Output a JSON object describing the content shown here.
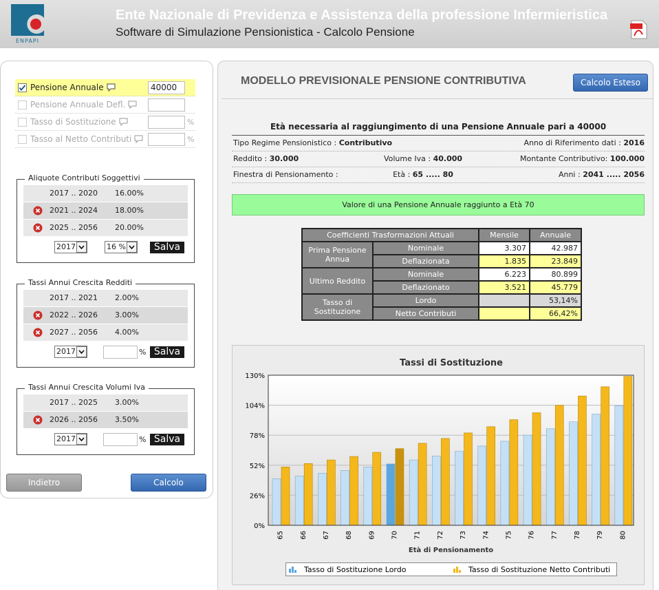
{
  "header": {
    "title": "Ente Nazionale di Previdenza e Assistenza della professione Infermieristica",
    "subtitle": "Software di Simulazione Pensionistica - Calcolo Pensione",
    "logo_text": "ENPAPI"
  },
  "left_panel": {
    "options": [
      {
        "label": "Pensione Annuale",
        "value": "40000",
        "checked": true
      },
      {
        "label": "Pensione Annuale Defl."
      },
      {
        "label": "Tasso di Sostituzione",
        "unit": "%"
      },
      {
        "label": "Tasso al Netto Contributi",
        "unit": "%"
      }
    ],
    "groups": [
      {
        "title": "Aliquote Contributi Soggettivi",
        "rows": [
          {
            "period": "2017 .. 2020",
            "rate": "16.00%"
          },
          {
            "period": "2021 .. 2024",
            "rate": "18.00%",
            "removable": true
          },
          {
            "period": "2025 .. 2056",
            "rate": "20.00%",
            "removable": true
          }
        ],
        "year_select": "2017",
        "rate_select": "16 %",
        "button": "Salva"
      },
      {
        "title": "Tassi Annui Crescita Redditi",
        "rows": [
          {
            "period": "2017 .. 2021",
            "rate": "2.00%"
          },
          {
            "period": "2022 .. 2026",
            "rate": "3.00%",
            "removable": true
          },
          {
            "period": "2027 .. 2056",
            "rate": "4.00%",
            "removable": true
          }
        ],
        "year_select": "2017",
        "unit": "%",
        "button": "Salva"
      },
      {
        "title": "Tassi Annui Crescita Volumi Iva",
        "rows": [
          {
            "period": "2017 .. 2025",
            "rate": "3.00%"
          },
          {
            "period": "2026 .. 2056",
            "rate": "3.50%",
            "removable": true
          }
        ],
        "year_select": "2017",
        "unit": "%",
        "button": "Salva"
      }
    ],
    "buttons": {
      "back": "Indietro",
      "calc": "Calcolo"
    }
  },
  "main": {
    "title": "MODELLO PREVISIONALE PENSIONE CONTRIBUTIVA",
    "button": "Calcolo Esteso",
    "heading": "Età necessaria al raggiungimento di una Pensione Annuale pari a 40000",
    "info": [
      {
        "left": {
          "label": "Tipo Regime Pensionistico : ",
          "value": "Contributivo"
        },
        "right": {
          "label": "Anno di Riferimento dati : ",
          "value": "2016"
        }
      },
      {
        "left": {
          "label": "Reddito : ",
          "value": "30.000"
        },
        "center": {
          "label": "Volume Iva : ",
          "value": "40.000"
        },
        "right": {
          "label": "Montante Contributivo: ",
          "value": "100.000"
        }
      },
      {
        "left": {
          "label": "Finestra di Pensionamento :"
        },
        "center": {
          "label": "Età : ",
          "value": "65 ..... 80"
        },
        "right": {
          "label": "Anni : ",
          "value": "2041 ..... 2056"
        }
      }
    ],
    "result": "Valore di una Pensione Annuale raggiunto a Età 70",
    "table": {
      "header": [
        "Coefficienti Trasformazioni Attuali",
        "Mensile",
        "Annuale"
      ],
      "groups": [
        {
          "label": "Prima Pensione Annua",
          "rows": [
            {
              "label": "Nominale",
              "mensile": "3.307",
              "annuale": "42.987"
            },
            {
              "label": "Deflazionata",
              "mensile": "1.835",
              "annuale": "23.849",
              "highlight": true
            }
          ]
        },
        {
          "label": "Ultimo Reddito",
          "rows": [
            {
              "label": "Nominale",
              "mensile": "6.223",
              "annuale": "80.899"
            },
            {
              "label": "Deflazionato",
              "mensile": "3.521",
              "annuale": "45.779",
              "highlight": true
            }
          ]
        },
        {
          "label": "Tasso di Sostituzione",
          "rows": [
            {
              "label": "Lordo",
              "annuale": "53,14%"
            },
            {
              "label": "Netto Contributi",
              "annuale": "66,42%",
              "highlight": true
            }
          ]
        }
      ]
    }
  },
  "chart_data": {
    "type": "bar",
    "title": "Tassi di Sostituzione",
    "x_label": "Età di Pensionamento",
    "categories": [
      "65",
      "66",
      "67",
      "68",
      "69",
      "70",
      "71",
      "72",
      "73",
      "74",
      "75",
      "76",
      "77",
      "78",
      "79",
      "80"
    ],
    "highlight": "70",
    "series": [
      {
        "name": "Tasso di Sostituzione Lordo",
        "color": "#c4e0f6",
        "highlight_color": "#5aa6de",
        "values": [
          40.3,
          42.7,
          45,
          47.5,
          50.5,
          53.14,
          56.6,
          60,
          64,
          68.6,
          72.8,
          78,
          83.6,
          89.6,
          96.3,
          103.5
        ]
      },
      {
        "name": "Tasso di Sostituzione Netto Contributi",
        "color": "#f4b81c",
        "highlight_color": "#c8920e",
        "values": [
          50.5,
          53.5,
          56.6,
          59.6,
          63.2,
          66.42,
          71,
          75.2,
          80,
          85.4,
          91.5,
          97.5,
          104,
          112,
          120,
          129
        ]
      }
    ],
    "ylim": [
      0,
      130
    ],
    "yticks": [
      {
        "value": 0,
        "label": "0%"
      },
      {
        "value": 26,
        "label": "26%"
      },
      {
        "value": 52,
        "label": "52%"
      },
      {
        "value": 78,
        "label": "78%"
      },
      {
        "value": 104,
        "label": "104%"
      },
      {
        "value": 130,
        "label": "130%"
      }
    ],
    "grid": true
  }
}
